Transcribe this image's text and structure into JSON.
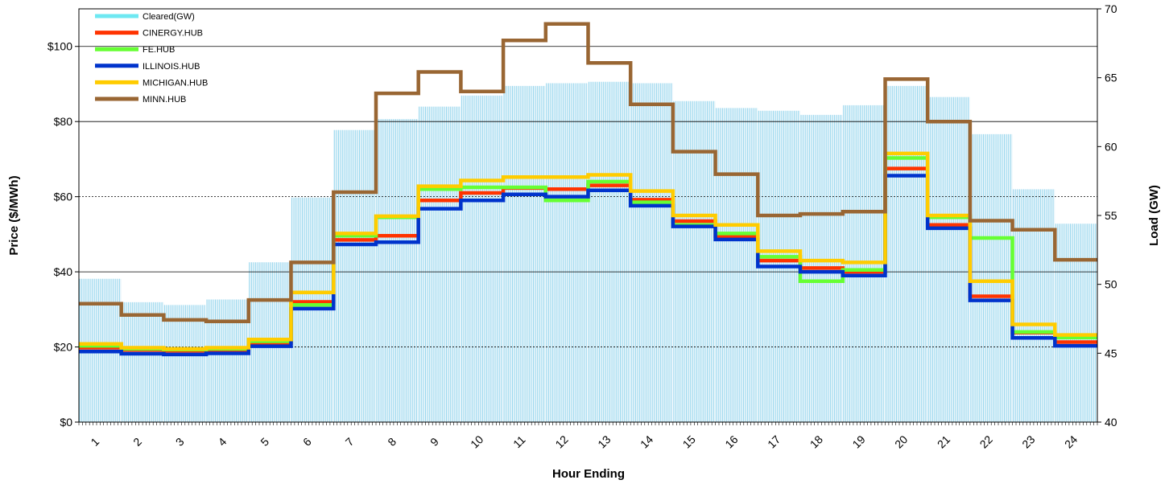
{
  "chart_data": {
    "type": "line",
    "xlabel": "Hour Ending",
    "ylabel_left": "Price ($/MWh)",
    "ylabel_right": "Load (GW)",
    "ylim_left": [
      0,
      110
    ],
    "ylim_right": [
      40,
      70
    ],
    "left_ticks": [
      "$0",
      "$20",
      "$40",
      "$60",
      "$80",
      "$100"
    ],
    "right_ticks": [
      "40",
      "45",
      "50",
      "55",
      "60",
      "65",
      "70"
    ],
    "categories": [
      "1",
      "2",
      "3",
      "4",
      "5",
      "6",
      "7",
      "8",
      "9",
      "10",
      "11",
      "12",
      "13",
      "14",
      "15",
      "16",
      "17",
      "18",
      "19",
      "20",
      "21",
      "22",
      "23",
      "24"
    ],
    "load": {
      "name": "Cleared(GW)",
      "color": "#9ad8ee",
      "legend_color": "#6ee8f2",
      "values": [
        50.4,
        48.7,
        48.5,
        48.9,
        51.6,
        56.3,
        61.2,
        62.0,
        62.9,
        63.7,
        64.4,
        64.6,
        64.7,
        64.6,
        63.3,
        62.8,
        62.6,
        62.3,
        63.0,
        64.4,
        63.6,
        60.9,
        56.9,
        54.4
      ]
    },
    "series": [
      {
        "name": "CINERGY.HUB",
        "color": "#ff3300",
        "values": [
          19.8,
          19.2,
          19.0,
          19.1,
          21.0,
          32.0,
          48.5,
          49.6,
          59.0,
          61.0,
          62.3,
          62.0,
          63.0,
          59.2,
          53.5,
          49.5,
          43.0,
          41.0,
          40.0,
          67.5,
          52.5,
          33.5,
          23.8,
          21.3
        ]
      },
      {
        "name": "FE.HUB",
        "color": "#66ff33",
        "values": [
          20.3,
          19.5,
          19.3,
          19.5,
          21.5,
          31.2,
          49.6,
          54.5,
          62.0,
          62.5,
          62.5,
          59.0,
          64.0,
          58.5,
          52.5,
          50.2,
          44.0,
          37.5,
          40.5,
          70.3,
          54.5,
          49.0,
          24.0,
          22.5
        ]
      },
      {
        "name": "ILLINOIS.HUB",
        "color": "#0033cc",
        "values": [
          18.8,
          18.2,
          18.0,
          18.3,
          20.2,
          30.2,
          47.3,
          47.9,
          56.8,
          59.0,
          60.6,
          60.0,
          61.7,
          57.6,
          52.1,
          48.6,
          41.4,
          40.0,
          39.0,
          65.6,
          51.6,
          32.4,
          22.4,
          20.3
        ]
      },
      {
        "name": "MICHIGAN.HUB",
        "color": "#ffcc00",
        "values": [
          20.8,
          19.8,
          19.5,
          19.8,
          22.0,
          34.5,
          50.2,
          54.8,
          62.8,
          64.3,
          65.2,
          65.2,
          65.8,
          61.5,
          55.0,
          52.5,
          45.5,
          43.0,
          42.5,
          71.5,
          55.0,
          37.5,
          26.0,
          23.2
        ]
      },
      {
        "name": "MINN.HUB",
        "color": "#996633",
        "values": [
          31.5,
          28.5,
          27.2,
          26.8,
          32.5,
          42.5,
          61.2,
          87.5,
          93.2,
          88.0,
          101.6,
          106.0,
          95.6,
          84.6,
          72.0,
          66.0,
          55.0,
          55.4,
          56.0,
          91.3,
          80.0,
          53.6,
          51.2,
          43.2
        ]
      }
    ],
    "grid": true,
    "legend_position": "top-left"
  }
}
